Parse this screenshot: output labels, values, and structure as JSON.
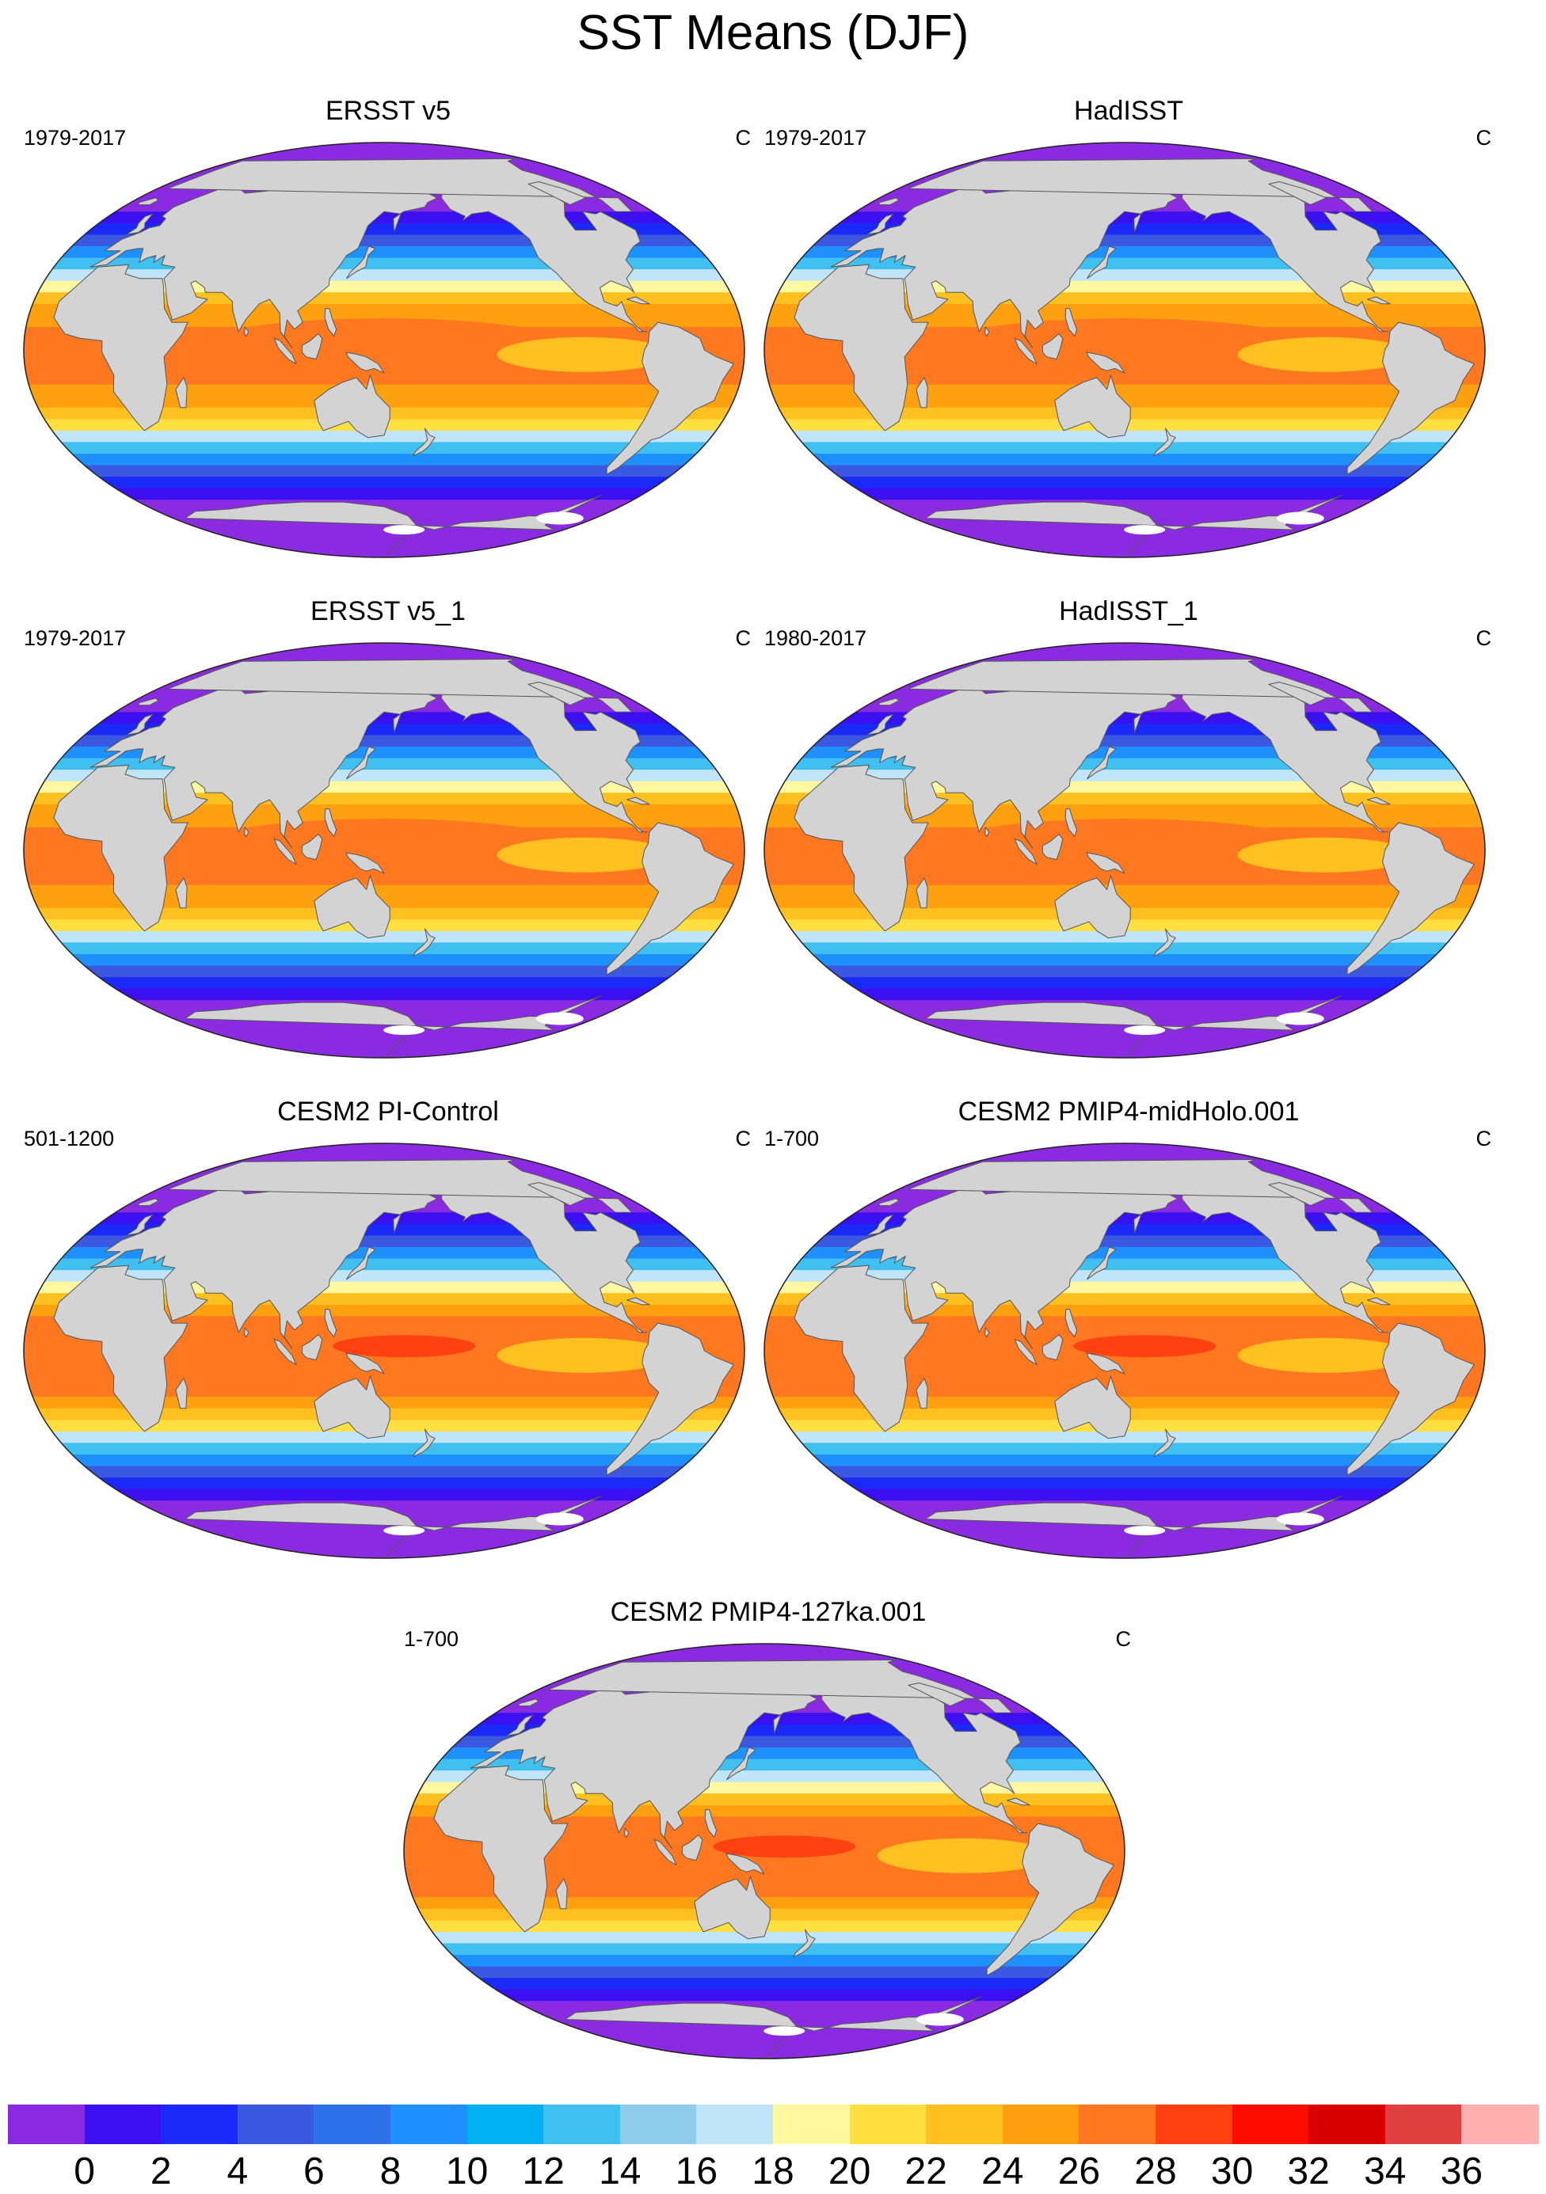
{
  "figure": {
    "title": "SST Means (DJF)"
  },
  "panels": [
    {
      "title": "ERSST v5",
      "period": "1979-2017",
      "units": "C"
    },
    {
      "title": "HadISST",
      "period": "1979-2017",
      "units": "C"
    },
    {
      "title": "ERSST v5_1",
      "period": "1979-2017",
      "units": "C"
    },
    {
      "title": "HadISST_1",
      "period": "1980-2017",
      "units": "C"
    },
    {
      "title": "CESM2 PI-Control",
      "period": "501-1200",
      "units": "C"
    },
    {
      "title": "CESM2 PMIP4-midHolo.001",
      "period": "1-700",
      "units": "C"
    },
    {
      "title": "CESM2 PMIP4-127ka.001",
      "period": "1-700",
      "units": "C"
    }
  ],
  "colorbar": {
    "labels": [
      "0",
      "2",
      "4",
      "6",
      "8",
      "10",
      "12",
      "14",
      "16",
      "18",
      "20",
      "22",
      "24",
      "26",
      "28",
      "30",
      "32",
      "34",
      "36"
    ],
    "colors": [
      "#8a2be2",
      "#3a10f0",
      "#1a28f8",
      "#3a58e0",
      "#2e70e8",
      "#1e90ff",
      "#00b0f0",
      "#40c0f0",
      "#90ccec",
      "#c0e4f8",
      "#fff8a0",
      "#ffe040",
      "#ffc020",
      "#ffa010",
      "#ff7820",
      "#ff4010",
      "#ff0c00",
      "#d80000",
      "#e04040",
      "#ffb0b0"
    ]
  },
  "legend_visual": {
    "land_color": "#d3d3d3",
    "ice_color": "#ffffff"
  }
}
